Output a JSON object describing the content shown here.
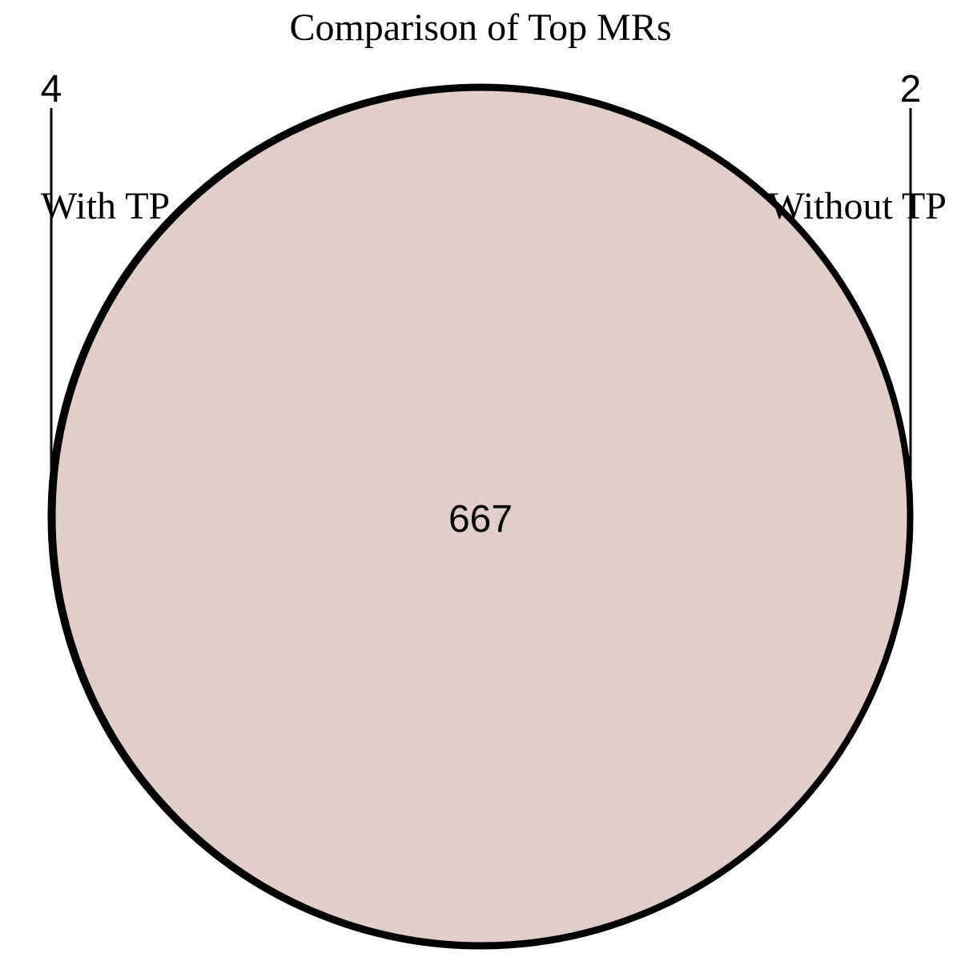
{
  "diagram": {
    "title": "Comparison of Top MRs",
    "sets": [
      {
        "label": "With TP",
        "unique_count": "4",
        "color": "#c0a098"
      },
      {
        "label": "Without TP",
        "unique_count": "2",
        "color": "#c0a098"
      }
    ],
    "intersection_count": "667",
    "overlap_fill": "#e2cec9",
    "outline_color": "#000000"
  }
}
